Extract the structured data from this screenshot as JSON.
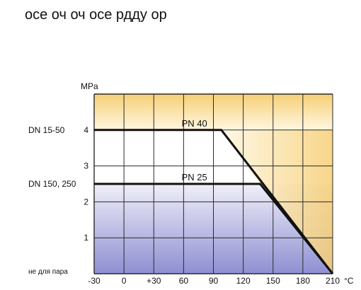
{
  "header": {
    "cropped_text": "осе   оч  оч   осе  рдду  ор"
  },
  "chart_data": {
    "type": "line",
    "title": "",
    "xlabel": "",
    "ylabel": "MPa",
    "x_unit": "°C",
    "x_ticks": [
      -30,
      0,
      30,
      60,
      90,
      120,
      150,
      180,
      210
    ],
    "x_tick_labels": [
      "-30",
      "0",
      "+30",
      "60",
      "90",
      "120",
      "150",
      "180",
      "210"
    ],
    "y_ticks": [
      1,
      2,
      3,
      4
    ],
    "y_tick_labels": [
      "1",
      "2",
      "3",
      "4"
    ],
    "xlim": [
      -30,
      210
    ],
    "ylim": [
      0,
      5
    ],
    "grid": true,
    "legend": "none",
    "left_labels": [
      {
        "text": "DN 15-50",
        "y": 4
      },
      {
        "text": "DN 150, 250",
        "y": 2.5
      },
      {
        "text": "не для пара",
        "y": 0
      }
    ],
    "series": [
      {
        "name": "PN 40",
        "x": [
          -30,
          98,
          210
        ],
        "y": [
          4,
          4,
          0
        ],
        "color": "#111111"
      },
      {
        "name": "PN 25",
        "x": [
          -30,
          137,
          210
        ],
        "y": [
          2.5,
          2.5,
          0
        ],
        "color": "#111111"
      }
    ],
    "colors": {
      "top_band": "#f6cf75",
      "top_band_light": "#fff7e2",
      "bottom_band_dark": "#8f8fd2",
      "bottom_band_light": "#efeff9",
      "grid": "#2a2a2a"
    }
  }
}
